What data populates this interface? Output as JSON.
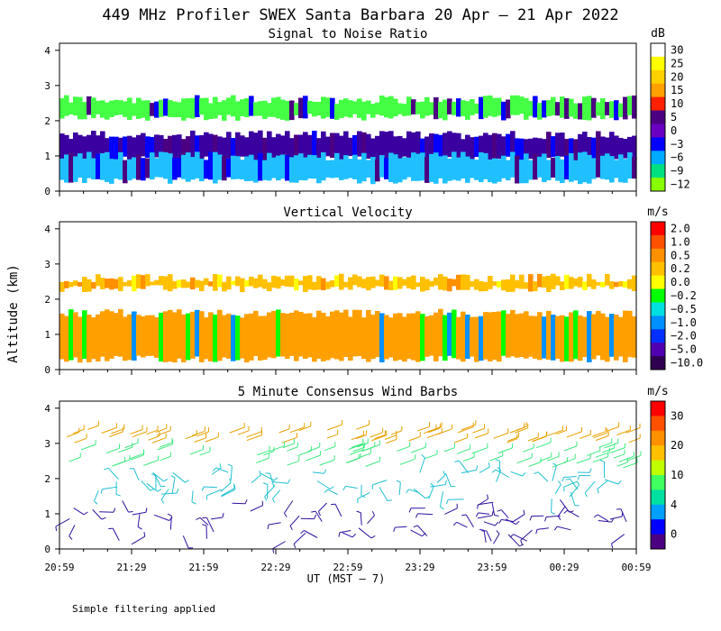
{
  "title": "449 MHz Profiler SWEX Santa Barbara 20 Apr – 21 Apr 2022",
  "ylabel": "Altitude (km)",
  "xlabel": "UT   (MST – 7)",
  "footer": "Simple filtering applied",
  "chart_data": [
    {
      "type": "heatmap",
      "title": "Signal to Noise Ratio",
      "xticks": [
        "20:59",
        "21:29",
        "21:59",
        "22:29",
        "22:59",
        "23:29",
        "23:59",
        "00:29",
        "00:59"
      ],
      "yticks": [
        0,
        1,
        2,
        3,
        4
      ],
      "ylim": [
        0,
        4.2
      ],
      "colorbar": {
        "unit": "dB",
        "labels": [
          "30",
          "25",
          "20",
          "15",
          "10",
          "5",
          "0",
          "−3",
          "−6",
          "−9",
          "−12"
        ],
        "colors": [
          "#ffffff",
          "#ffff00",
          "#ffd000",
          "#ffa000",
          "#ff2000",
          "#4b0082",
          "#6a00c0",
          "#0000ff",
          "#00aaff",
          "#00e080",
          "#88ff00"
        ]
      },
      "bands": [
        {
          "ymin": 2.1,
          "ymax": 2.6,
          "value": "−9",
          "color": "#44ff44"
        },
        {
          "ymin": 1.3,
          "ymax": 2.1,
          "value": "none",
          "color": "#ffffff"
        },
        {
          "ymin": 0.9,
          "ymax": 1.6,
          "value": "0",
          "color": "#3a00a0"
        },
        {
          "ymin": 0.3,
          "ymax": 1.0,
          "value": "−6",
          "color": "#20c0ff"
        }
      ]
    },
    {
      "type": "heatmap",
      "title": "Vertical Velocity",
      "xticks": [
        "20:59",
        "21:29",
        "21:59",
        "22:29",
        "22:59",
        "23:29",
        "23:59",
        "00:29",
        "00:59"
      ],
      "yticks": [
        0,
        1,
        2,
        3,
        4
      ],
      "ylim": [
        0,
        4.2
      ],
      "colorbar": {
        "unit": "m/s",
        "labels": [
          "2.0",
          "1.0",
          "0.5",
          "0.2",
          "0.0",
          "−0.2",
          "−0.5",
          "−1.0",
          "−2.0",
          "−5.0",
          "−10.0"
        ],
        "colors": [
          "#ff0000",
          "#ff5000",
          "#ff9000",
          "#ffc000",
          "#ffff00",
          "#00ff00",
          "#00e0e0",
          "#0090ff",
          "#0030ff",
          "#5000b0",
          "#300050"
        ]
      },
      "bands": [
        {
          "ymin": 2.3,
          "ymax": 2.6,
          "value": "0.2",
          "color": "#ffc000"
        },
        {
          "ymin": 1.6,
          "ymax": 2.3,
          "value": "none",
          "color": "#ffffff"
        },
        {
          "ymin": 0.3,
          "ymax": 1.6,
          "value": "0.5",
          "color": "#ffa000"
        }
      ]
    },
    {
      "type": "scatter",
      "title": "5 Minute Consensus Wind Barbs",
      "xticks": [
        "20:59",
        "21:29",
        "21:59",
        "22:29",
        "22:59",
        "23:29",
        "23:59",
        "00:29",
        "00:59"
      ],
      "yticks": [
        0,
        1,
        2,
        3,
        4
      ],
      "ylim": [
        0,
        4.2
      ],
      "colorbar": {
        "unit": "m/s",
        "labels": [
          "30",
          "20",
          "10",
          "4",
          "0"
        ],
        "colors": [
          "#ff0000",
          "#ff5000",
          "#ff9000",
          "#ffc000",
          "#c0ff00",
          "#40ff60",
          "#00e0a0",
          "#00a0ff",
          "#0000ff",
          "#4b0082"
        ]
      },
      "layers": [
        {
          "ymin": 3.0,
          "ymax": 3.4,
          "speed": 25,
          "color": "#e8a000"
        },
        {
          "ymin": 2.3,
          "ymax": 2.9,
          "speed": 12,
          "color": "#40e880"
        },
        {
          "ymin": 1.4,
          "ymax": 2.2,
          "speed": 8,
          "color": "#20c0d0"
        },
        {
          "ymin": 0.1,
          "ymax": 1.4,
          "speed": 3,
          "color": "#3010a0"
        }
      ]
    }
  ]
}
